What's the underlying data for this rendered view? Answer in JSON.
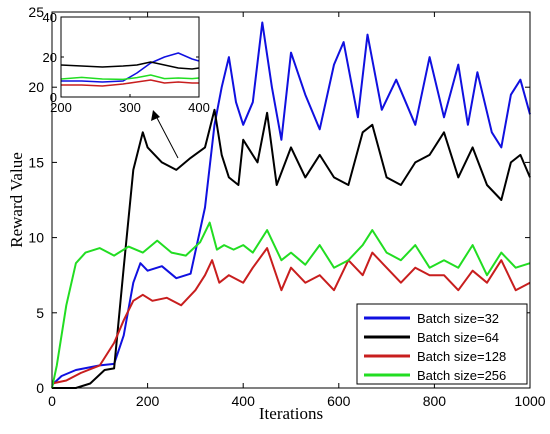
{
  "chart_data": {
    "type": "line",
    "xlabel": "Iterations",
    "ylabel": "Reward Value",
    "xlim": [
      0,
      1000
    ],
    "ylim": [
      0,
      25
    ],
    "xticks": [
      "0",
      "200",
      "400",
      "600",
      "800",
      "1000"
    ],
    "yticks": [
      "0",
      "5",
      "10",
      "15",
      "20",
      "25"
    ],
    "legend_position": "bottom-right",
    "grid": false,
    "series": [
      {
        "name": "Batch size=32",
        "color": "#1010e0",
        "x": [
          0,
          20,
          50,
          100,
          130,
          150,
          170,
          185,
          200,
          230,
          260,
          290,
          320,
          340,
          355,
          370,
          385,
          400,
          420,
          440,
          460,
          480,
          500,
          530,
          560,
          590,
          610,
          640,
          660,
          690,
          720,
          760,
          790,
          820,
          850,
          870,
          890,
          920,
          940,
          960,
          980,
          1000
        ],
        "y": [
          0.2,
          0.8,
          1.2,
          1.5,
          1.6,
          3.5,
          7.0,
          8.3,
          7.8,
          8.1,
          7.3,
          7.6,
          12.0,
          17.5,
          20.0,
          22.0,
          19.0,
          17.5,
          19.0,
          24.3,
          20.0,
          16.5,
          22.3,
          19.5,
          17.2,
          21.5,
          23.0,
          18.0,
          23.5,
          18.5,
          20.5,
          17.5,
          22.0,
          18.0,
          21.5,
          17.5,
          21.0,
          17.0,
          16.0,
          19.5,
          20.5,
          18.2
        ]
      },
      {
        "name": "Batch size=64",
        "color": "#000000",
        "x": [
          0,
          50,
          80,
          110,
          130,
          150,
          170,
          190,
          200,
          230,
          260,
          290,
          320,
          340,
          355,
          370,
          390,
          400,
          430,
          450,
          470,
          500,
          530,
          560,
          590,
          620,
          650,
          670,
          700,
          730,
          760,
          790,
          820,
          850,
          880,
          910,
          940,
          960,
          980,
          1000
        ],
        "y": [
          0,
          0,
          0.3,
          1.2,
          1.3,
          8.0,
          14.5,
          17.0,
          16.0,
          15.0,
          14.5,
          15.3,
          16.0,
          18.5,
          15.5,
          14.0,
          13.5,
          16.5,
          15.0,
          18.3,
          13.5,
          16.0,
          14.0,
          15.5,
          14.0,
          13.5,
          17.0,
          17.5,
          14.0,
          13.5,
          15.0,
          15.5,
          17.0,
          14.0,
          16.0,
          13.5,
          12.5,
          15.0,
          15.5,
          14.0
        ]
      },
      {
        "name": "Batch size=128",
        "color": "#c81e1e",
        "x": [
          0,
          30,
          60,
          100,
          130,
          150,
          170,
          190,
          210,
          240,
          270,
          300,
          320,
          335,
          350,
          370,
          400,
          420,
          450,
          480,
          500,
          530,
          560,
          590,
          620,
          650,
          670,
          700,
          730,
          760,
          790,
          820,
          850,
          880,
          910,
          940,
          970,
          1000
        ],
        "y": [
          0.3,
          0.5,
          1.0,
          1.5,
          3.0,
          4.5,
          5.8,
          6.2,
          5.8,
          6.0,
          5.5,
          6.5,
          7.5,
          8.5,
          7.0,
          7.5,
          7.0,
          8.0,
          9.3,
          6.5,
          8.0,
          7.0,
          7.5,
          6.5,
          8.5,
          7.5,
          9.0,
          8.0,
          7.0,
          8.0,
          7.5,
          7.5,
          6.5,
          7.8,
          7.0,
          8.5,
          6.5,
          7.0
        ]
      },
      {
        "name": "Batch size=256",
        "color": "#22dd22",
        "x": [
          0,
          10,
          30,
          50,
          70,
          100,
          130,
          160,
          190,
          220,
          250,
          280,
          310,
          330,
          345,
          360,
          380,
          400,
          420,
          450,
          480,
          500,
          530,
          560,
          590,
          620,
          650,
          670,
          700,
          730,
          760,
          790,
          820,
          850,
          880,
          910,
          940,
          970,
          1000
        ],
        "y": [
          0,
          1.5,
          5.5,
          8.3,
          9.0,
          9.3,
          8.8,
          9.4,
          9.0,
          9.8,
          9.0,
          8.8,
          9.7,
          11.0,
          9.2,
          9.5,
          9.2,
          9.5,
          9.0,
          10.5,
          8.5,
          9.0,
          8.2,
          9.5,
          8.0,
          8.5,
          9.5,
          10.5,
          9.0,
          8.5,
          9.5,
          8.0,
          8.5,
          8.0,
          9.5,
          7.5,
          9.0,
          8.0,
          8.3
        ]
      }
    ],
    "inset": {
      "xlim": [
        200,
        400
      ],
      "ylim": [
        0,
        40
      ],
      "xticks": [
        "200",
        "300",
        "400"
      ],
      "yticks": [
        "0",
        "20",
        "40"
      ],
      "series": [
        {
          "name": "Batch size=32",
          "color": "#1010e0",
          "x": [
            200,
            230,
            260,
            290,
            310,
            330,
            350,
            370,
            390,
            400
          ],
          "y": [
            8,
            8,
            7.5,
            8,
            12,
            17,
            20,
            22,
            19,
            18
          ]
        },
        {
          "name": "Batch size=64",
          "color": "#000000",
          "x": [
            200,
            230,
            260,
            290,
            310,
            330,
            350,
            370,
            390,
            400
          ],
          "y": [
            16,
            15.5,
            15,
            15.5,
            16,
            17.5,
            16,
            14.5,
            14,
            14.5
          ]
        },
        {
          "name": "Batch size=128",
          "color": "#c81e1e",
          "x": [
            200,
            230,
            260,
            290,
            310,
            330,
            350,
            370,
            390,
            400
          ],
          "y": [
            6,
            6,
            5.5,
            6.5,
            7.5,
            8.5,
            7,
            7.5,
            7,
            7
          ]
        },
        {
          "name": "Batch size=256",
          "color": "#22dd22",
          "x": [
            200,
            230,
            260,
            290,
            310,
            330,
            350,
            370,
            390,
            400
          ],
          "y": [
            9,
            9.8,
            9,
            8.8,
            9.7,
            11,
            9.2,
            9.5,
            9.2,
            9.5
          ]
        }
      ]
    }
  }
}
